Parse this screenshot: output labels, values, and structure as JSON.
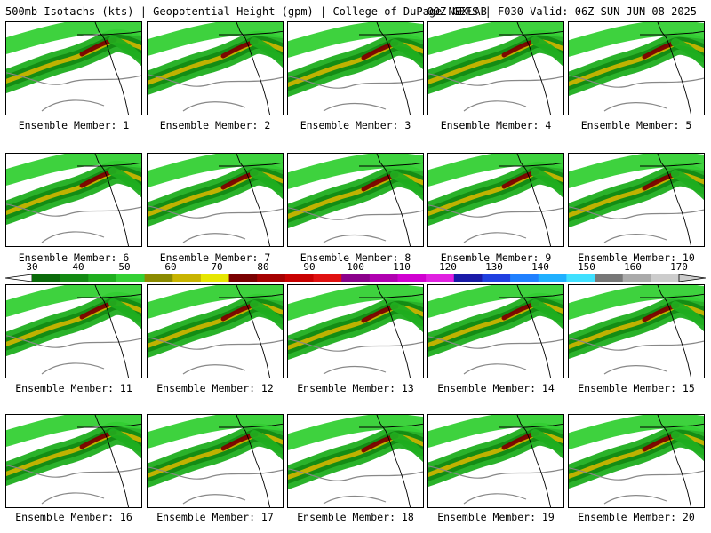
{
  "header": {
    "title": "500mb Isotachs (kts) | Geopotential Height (gpm) | College of DuPage NEXLAB",
    "model_info": "00Z GEFS | F030 Valid: 06Z SUN JUN 08 2025"
  },
  "panels": [
    {
      "label": "Ensemble Member: 1"
    },
    {
      "label": "Ensemble Member: 2"
    },
    {
      "label": "Ensemble Member: 3"
    },
    {
      "label": "Ensemble Member: 4"
    },
    {
      "label": "Ensemble Member: 5"
    },
    {
      "label": "Ensemble Member: 6"
    },
    {
      "label": "Ensemble Member: 7"
    },
    {
      "label": "Ensemble Member: 8"
    },
    {
      "label": "Ensemble Member: 9"
    },
    {
      "label": "Ensemble Member: 10"
    },
    {
      "label": "Ensemble Member: 11"
    },
    {
      "label": "Ensemble Member: 12"
    },
    {
      "label": "Ensemble Member: 13"
    },
    {
      "label": "Ensemble Member: 14"
    },
    {
      "label": "Ensemble Member: 15"
    },
    {
      "label": "Ensemble Member: 16"
    },
    {
      "label": "Ensemble Member: 17"
    },
    {
      "label": "Ensemble Member: 18"
    },
    {
      "label": "Ensemble Member: 19"
    },
    {
      "label": "Ensemble Member: 20"
    }
  ],
  "colorbar": {
    "labels": [
      "30",
      "40",
      "50",
      "60",
      "70",
      "80",
      "90",
      "100",
      "110",
      "120",
      "130",
      "140",
      "150",
      "160",
      "170"
    ],
    "colors": [
      "#0b6b0b",
      "#138a13",
      "#1fae1f",
      "#34d034",
      "#8b8b00",
      "#c8b400",
      "#e6e600",
      "#7a0000",
      "#a50000",
      "#c80000",
      "#e01010",
      "#8b008b",
      "#b000b0",
      "#d000d0",
      "#e020e0",
      "#1a1aa8",
      "#2040e0",
      "#2080ff",
      "#20b0ff",
      "#40e0ff",
      "#777777",
      "#aaaaaa",
      "#cccccc"
    ]
  }
}
